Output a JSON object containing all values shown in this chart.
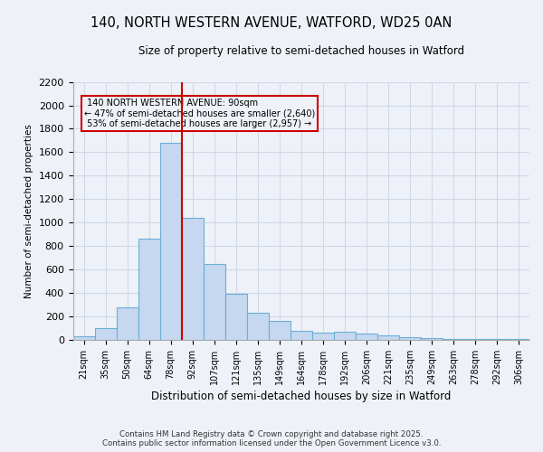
{
  "title_line1": "140, NORTH WESTERN AVENUE, WATFORD, WD25 0AN",
  "title_line2": "Size of property relative to semi-detached houses in Watford",
  "xlabel": "Distribution of semi-detached houses by size in Watford",
  "ylabel": "Number of semi-detached properties",
  "categories": [
    "21sqm",
    "35sqm",
    "50sqm",
    "64sqm",
    "78sqm",
    "92sqm",
    "107sqm",
    "121sqm",
    "135sqm",
    "149sqm",
    "164sqm",
    "178sqm",
    "192sqm",
    "206sqm",
    "221sqm",
    "235sqm",
    "249sqm",
    "263sqm",
    "278sqm",
    "292sqm",
    "306sqm"
  ],
  "values": [
    30,
    100,
    280,
    860,
    1680,
    1040,
    650,
    390,
    230,
    160,
    80,
    65,
    70,
    55,
    40,
    20,
    15,
    10,
    5,
    5,
    10
  ],
  "bar_color": "#c5d8f0",
  "bar_edge_color": "#6baed6",
  "grid_color": "#d0d8e8",
  "annotation_box_color": "#cc0000",
  "property_line_color": "#cc0000",
  "property_label": "140 NORTH WESTERN AVENUE: 90sqm",
  "pct_smaller": 47,
  "pct_larger": 53,
  "count_smaller": 2640,
  "count_larger": 2957,
  "property_bar_index": 4,
  "ylim": [
    0,
    2200
  ],
  "yticks": [
    0,
    200,
    400,
    600,
    800,
    1000,
    1200,
    1400,
    1600,
    1800,
    2000,
    2200
  ],
  "footer_line1": "Contains HM Land Registry data © Crown copyright and database right 2025.",
  "footer_line2": "Contains public sector information licensed under the Open Government Licence v3.0.",
  "background_color": "#eef2f8"
}
